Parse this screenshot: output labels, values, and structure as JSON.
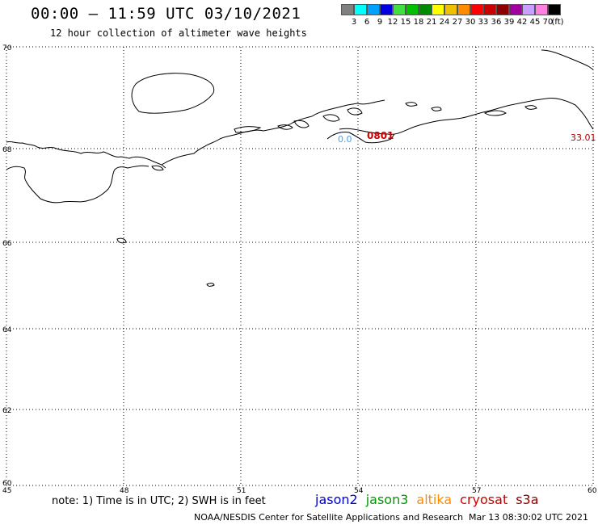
{
  "header": {
    "title": "00:00 – 11:59 UTC 03/10/2021",
    "subtitle": "12 hour collection of altimeter wave heights"
  },
  "colorbar": {
    "unit": "(ft)",
    "bins": [
      {
        "label": "3",
        "color": "#808080"
      },
      {
        "label": "6",
        "color": "#00ffff"
      },
      {
        "label": "9",
        "color": "#00a0ff"
      },
      {
        "label": "12",
        "color": "#0000e0"
      },
      {
        "label": "15",
        "color": "#40e040"
      },
      {
        "label": "18",
        "color": "#00c000"
      },
      {
        "label": "21",
        "color": "#008c00"
      },
      {
        "label": "24",
        "color": "#ffff00"
      },
      {
        "label": "27",
        "color": "#f0c000"
      },
      {
        "label": "30",
        "color": "#ff8c00"
      },
      {
        "label": "33",
        "color": "#ff0000"
      },
      {
        "label": "36",
        "color": "#c80000"
      },
      {
        "label": "39",
        "color": "#8c0000"
      },
      {
        "label": "42",
        "color": "#a000a0"
      },
      {
        "label": "45",
        "color": "#c8a0ff"
      },
      {
        "label": "70",
        "color": "#ff80e0"
      },
      {
        "label": "",
        "color": "#000000"
      }
    ]
  },
  "map": {
    "lat_labels": [
      "70",
      "68",
      "66",
      "64",
      "62",
      "60"
    ],
    "lon_labels": [
      "45",
      "48",
      "51",
      "54",
      "57",
      "60"
    ],
    "observations": [
      {
        "text": "0.0",
        "color": "#40a0ff"
      },
      {
        "text": "0801",
        "color": "#cc0000"
      },
      {
        "text": "33.01",
        "color": "#aa0000"
      }
    ]
  },
  "footer": {
    "note": "note: 1) Time is in UTC; 2) SWH is in feet",
    "satellites": [
      {
        "name": "jason2",
        "color": "#0000cc"
      },
      {
        "name": "jason3",
        "color": "#009900"
      },
      {
        "name": "altika",
        "color": "#ff8c00"
      },
      {
        "name": "cryosat",
        "color": "#cc0000"
      },
      {
        "name": "s3a",
        "color": "#8c0000"
      }
    ],
    "credit": "NOAA/NESDIS Center for Satellite Applications and Research",
    "timestamp": "Mar 13 08:30:02 UTC 2021"
  }
}
